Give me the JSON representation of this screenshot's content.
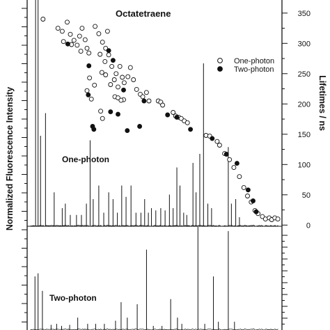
{
  "chart_data": {
    "type": "scatter",
    "title": "Octatetraene",
    "left_axis_label": "Normalized Fluorescence Intensity",
    "right_axis_label": "Lifetimes / ns",
    "right_axis": {
      "ylim": [
        -10,
        390
      ],
      "ticks": [
        "0",
        "50",
        "100",
        "150",
        "200",
        "250",
        "300",
        "350"
      ]
    },
    "spectrum_labels": [
      "One-photon",
      "Two-photon"
    ],
    "series": [
      {
        "name": "One-photon",
        "marker": "open-circle",
        "points": [
          [
            2,
            340
          ],
          [
            5,
            387
          ],
          [
            5.6,
            385
          ],
          [
            7.2,
            385
          ],
          [
            8,
            379
          ],
          [
            8.6,
            390
          ],
          [
            4.4,
            325
          ],
          [
            5.1,
            320
          ],
          [
            5.9,
            335
          ],
          [
            6.4,
            315
          ],
          [
            7,
            305
          ],
          [
            7.5,
            297
          ],
          [
            7.9,
            312
          ],
          [
            8.3,
            325
          ],
          [
            5.3,
            303
          ],
          [
            6.6,
            298
          ],
          [
            8.1,
            287
          ],
          [
            8.8,
            306
          ],
          [
            9.1,
            292
          ],
          [
            9.4,
            284
          ],
          [
            10.4,
            328
          ],
          [
            11,
            316
          ],
          [
            11.6,
            302
          ],
          [
            12.1,
            292
          ],
          [
            12.4,
            320
          ],
          [
            11.2,
            282
          ],
          [
            12,
            270
          ],
          [
            12.6,
            281
          ],
          [
            13.1,
            262
          ],
          [
            13.8,
            250
          ],
          [
            14.4,
            262
          ],
          [
            14.8,
            244
          ],
          [
            15.1,
            235
          ],
          [
            15.7,
            245
          ],
          [
            16.1,
            260
          ],
          [
            16.6,
            240
          ],
          [
            11.5,
            252
          ],
          [
            12.1,
            248
          ],
          [
            12.9,
            232
          ],
          [
            13.5,
            240
          ],
          [
            14.1,
            228
          ],
          [
            9.1,
            222
          ],
          [
            9.5,
            243
          ],
          [
            9.8,
            208
          ],
          [
            10.3,
            231
          ],
          [
            13.6,
            212
          ],
          [
            14.1,
            210
          ],
          [
            15,
            207
          ],
          [
            11.3,
            188
          ],
          [
            11.6,
            176
          ],
          [
            14.6,
            206
          ],
          [
            17.1,
            224
          ],
          [
            17.7,
            216
          ],
          [
            18.1,
            212
          ],
          [
            18.7,
            219
          ],
          [
            19.1,
            205
          ],
          [
            20.6,
            205
          ],
          [
            21,
            203
          ],
          [
            21.3,
            198
          ],
          [
            23,
            186
          ],
          [
            23.4,
            180
          ],
          [
            23.9,
            178
          ],
          [
            24.3,
            176
          ],
          [
            24.8,
            172
          ],
          [
            25.3,
            169
          ],
          [
            28.3,
            148
          ],
          [
            28.9,
            147
          ],
          [
            30.1,
            138
          ],
          [
            30.5,
            132
          ],
          [
            31.3,
            118
          ],
          [
            32.1,
            108
          ],
          [
            32.8,
            95
          ],
          [
            33.7,
            80
          ],
          [
            34.4,
            62
          ],
          [
            35,
            48
          ],
          [
            35.6,
            38
          ],
          [
            36.2,
            24
          ],
          [
            36.7,
            19
          ],
          [
            37.4,
            14
          ],
          [
            37.9,
            10
          ],
          [
            38.5,
            12
          ],
          [
            38.9,
            9
          ],
          [
            39.4,
            12
          ],
          [
            39.9,
            10
          ]
        ]
      },
      {
        "name": "Two-photon",
        "marker": "filled-circle",
        "points": [
          [
            8.4,
            381
          ],
          [
            6,
            299
          ],
          [
            9.4,
            263
          ],
          [
            12.6,
            288
          ],
          [
            13.3,
            272
          ],
          [
            9.3,
            215
          ],
          [
            15,
            223
          ],
          [
            10,
            163
          ],
          [
            10.2,
            158
          ],
          [
            12.9,
            187
          ],
          [
            14.1,
            183
          ],
          [
            15.6,
            156
          ],
          [
            17.6,
            163
          ],
          [
            18.3,
            205
          ],
          [
            22.1,
            182
          ],
          [
            23.6,
            178
          ],
          [
            25.8,
            158
          ],
          [
            29.3,
            143
          ],
          [
            31.6,
            117
          ],
          [
            33.3,
            102
          ],
          [
            35.1,
            58
          ],
          [
            35.9,
            40
          ],
          [
            36.4,
            22
          ]
        ]
      }
    ],
    "one_photon_spectrum": [
      [
        0.8,
        1
      ],
      [
        1.2,
        1
      ],
      [
        1.6,
        0.4
      ],
      [
        2.4,
        0.5
      ],
      [
        3.8,
        0.15
      ],
      [
        5.1,
        0.08
      ],
      [
        5.6,
        0.1
      ],
      [
        6.4,
        0.05
      ],
      [
        7.4,
        0.05
      ],
      [
        8.2,
        0.05
      ],
      [
        9.0,
        0.1
      ],
      [
        9.6,
        0.38
      ],
      [
        10.1,
        0.12
      ],
      [
        11.0,
        0.18
      ],
      [
        11.8,
        0.06
      ],
      [
        12.6,
        0.15
      ],
      [
        13.3,
        0.12
      ],
      [
        14.0,
        0.06
      ],
      [
        14.7,
        0.18
      ],
      [
        15.4,
        0.13
      ],
      [
        16.2,
        0.18
      ],
      [
        17.0,
        0.06
      ],
      [
        17.8,
        0.06
      ],
      [
        18.4,
        0.12
      ],
      [
        19.0,
        0.06
      ],
      [
        19.5,
        0.08
      ],
      [
        20.2,
        0.07
      ],
      [
        21.0,
        0.08
      ],
      [
        21.7,
        0.07
      ],
      [
        22.4,
        0.14
      ],
      [
        23.0,
        0.08
      ],
      [
        23.6,
        0.26
      ],
      [
        24.1,
        0.18
      ],
      [
        24.7,
        0.06
      ],
      [
        25.2,
        0.05
      ],
      [
        26.2,
        0.28
      ],
      [
        26.7,
        0.15
      ],
      [
        27.3,
        0.32
      ],
      [
        27.9,
        0.72
      ],
      [
        28.6,
        0.1
      ],
      [
        29.2,
        0.08
      ],
      [
        31.9,
        0.35
      ],
      [
        32.4,
        0.1
      ],
      [
        33.1,
        0.12
      ],
      [
        33.7,
        0.04
      ]
    ],
    "two_photon_spectrum": [
      [
        0.7,
        0.52
      ],
      [
        1.2,
        0.55
      ],
      [
        1.9,
        0.38
      ],
      [
        3.3,
        0.05
      ],
      [
        4.2,
        0.06
      ],
      [
        5.0,
        0.04
      ],
      [
        6.3,
        0.05
      ],
      [
        7.6,
        0.12
      ],
      [
        9.2,
        0.06
      ],
      [
        10.5,
        0.06
      ],
      [
        11.9,
        0.06
      ],
      [
        13.7,
        0.09
      ],
      [
        14.6,
        0.27
      ],
      [
        15.6,
        0.12
      ],
      [
        17.2,
        0.25
      ],
      [
        18.7,
        0.78
      ],
      [
        19.8,
        0.04
      ],
      [
        21.2,
        0.04
      ],
      [
        22.6,
        0.3
      ],
      [
        23.7,
        0.12
      ],
      [
        24.4,
        0.06
      ],
      [
        27.0,
        1
      ],
      [
        28.1,
        0.06
      ],
      [
        29.5,
        0.52
      ],
      [
        30.3,
        0.08
      ],
      [
        31.9,
        0.96
      ],
      [
        32.9,
        0.08
      ]
    ]
  }
}
